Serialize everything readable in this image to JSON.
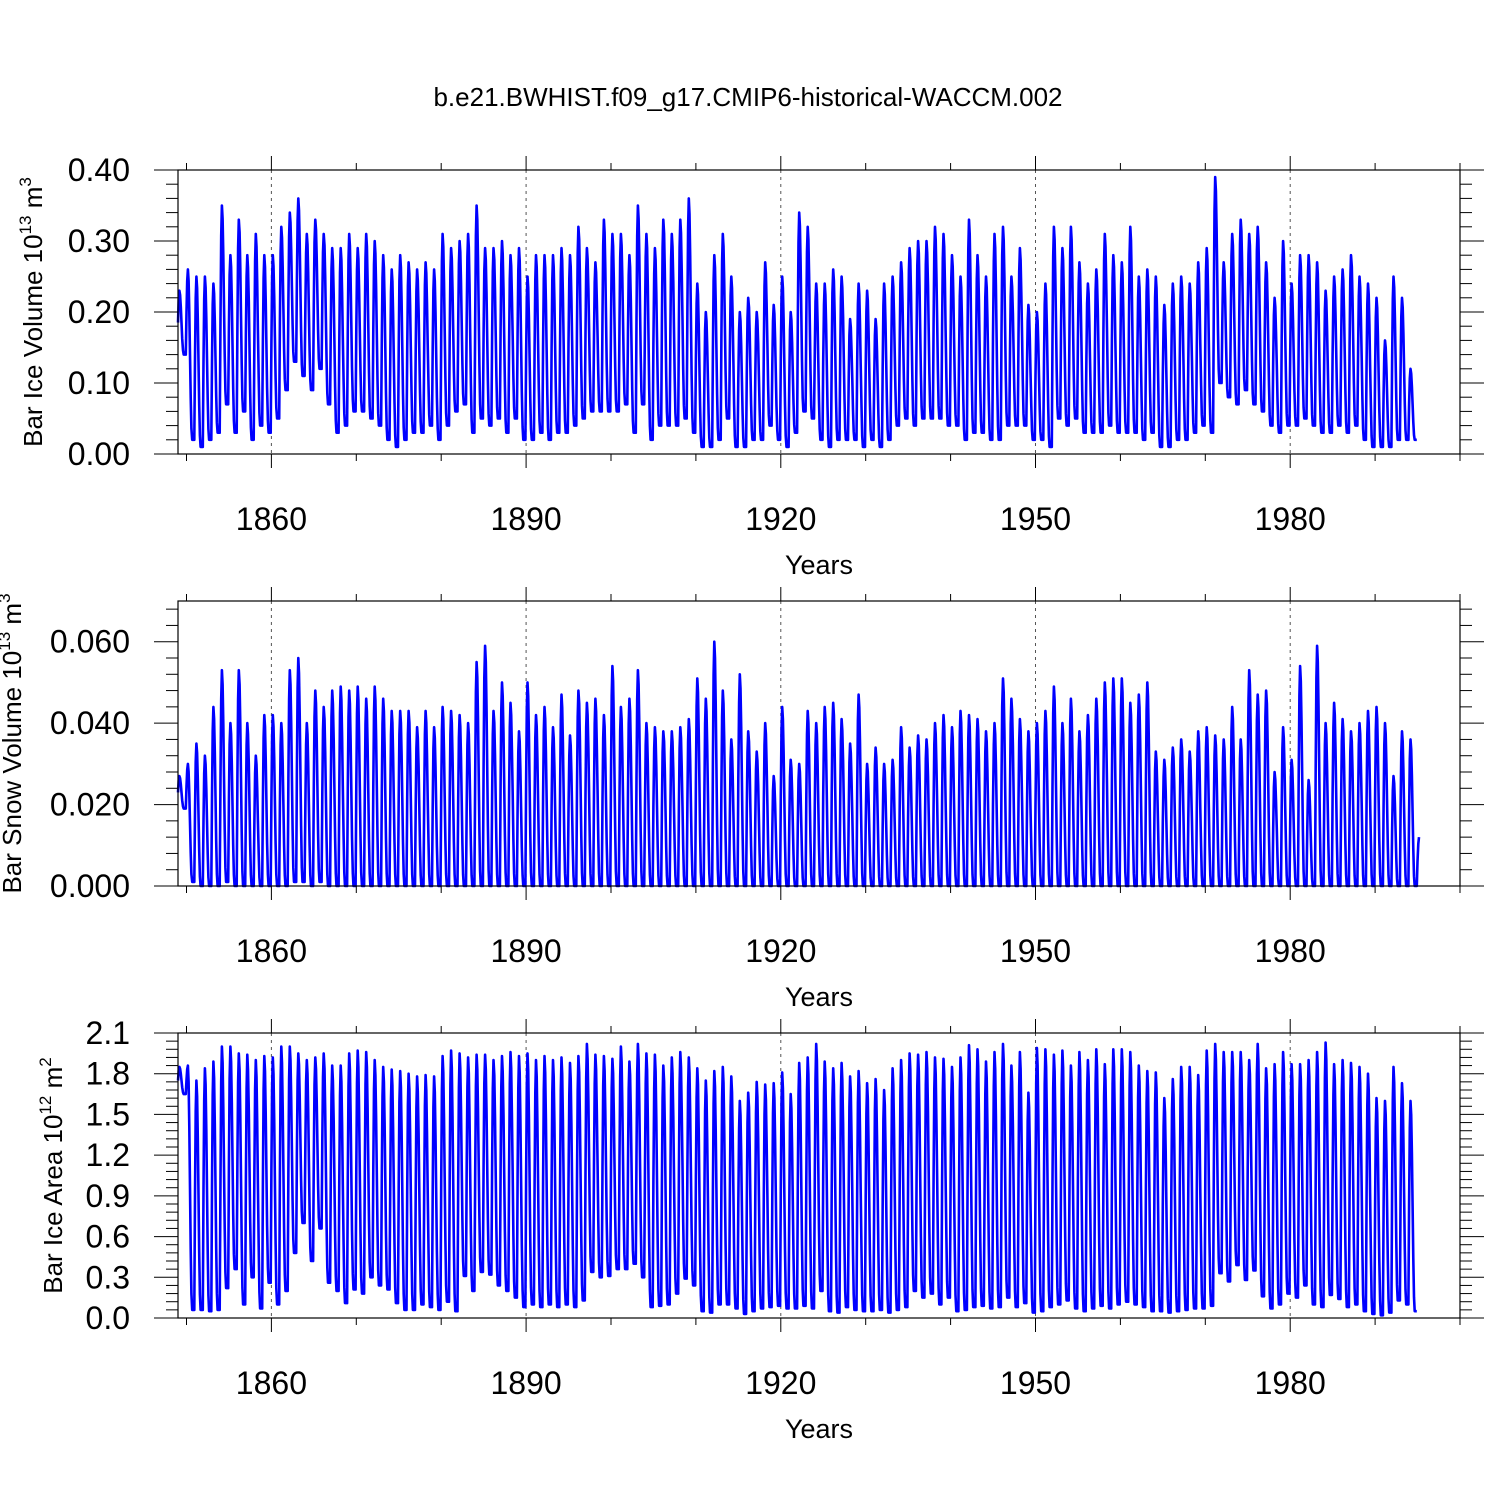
{
  "figure_title": "b.e21.BWHIST.f09_g17.CMIP6-historical-WACCM.002",
  "chart_data": [
    {
      "type": "line",
      "title": "",
      "xlabel": "Years",
      "ylabel": "Bar Ice Volume 10",
      "ylabel_exp": "13",
      "ylabel_unit": " m",
      "ylabel_unit_exp": "3",
      "xlim": [
        1849,
        2000
      ],
      "ylim": [
        0.0,
        0.4
      ],
      "x_ticks": [
        "1860",
        "1890",
        "1920",
        "1950",
        "1980"
      ],
      "y_ticks": [
        "0.00",
        "0.10",
        "0.20",
        "0.30",
        "0.40"
      ],
      "grid": "vertical dashed at major x ticks",
      "line_color": "#0000ff",
      "series": [
        {
          "start_year": 1849,
          "months_per_year": 12,
          "annual_max": [
            0.23,
            0.26,
            0.25,
            0.25,
            0.24,
            0.35,
            0.28,
            0.33,
            0.28,
            0.31,
            0.28,
            0.28,
            0.32,
            0.34,
            0.36,
            0.31,
            0.33,
            0.31,
            0.29,
            0.29,
            0.31,
            0.29,
            0.31,
            0.3,
            0.28,
            0.26,
            0.28,
            0.27,
            0.26,
            0.27,
            0.26,
            0.31,
            0.29,
            0.3,
            0.31,
            0.35,
            0.29,
            0.29,
            0.3,
            0.28,
            0.29,
            0.25,
            0.28,
            0.28,
            0.28,
            0.29,
            0.28,
            0.32,
            0.29,
            0.27,
            0.33,
            0.31,
            0.31,
            0.28,
            0.35,
            0.31,
            0.29,
            0.33,
            0.31,
            0.33,
            0.36,
            0.24,
            0.2,
            0.28,
            0.31,
            0.25,
            0.2,
            0.22,
            0.2,
            0.27,
            0.21,
            0.25,
            0.2,
            0.34,
            0.32,
            0.24,
            0.24,
            0.26,
            0.25,
            0.19,
            0.24,
            0.23,
            0.19,
            0.24,
            0.25,
            0.27,
            0.29,
            0.3,
            0.3,
            0.32,
            0.31,
            0.28,
            0.25,
            0.33,
            0.28,
            0.25,
            0.31,
            0.32,
            0.25,
            0.29,
            0.21,
            0.2,
            0.24,
            0.32,
            0.29,
            0.32,
            0.27,
            0.24,
            0.26,
            0.31,
            0.28,
            0.27,
            0.32,
            0.25,
            0.26,
            0.25,
            0.21,
            0.24,
            0.25,
            0.24,
            0.27,
            0.29,
            0.39,
            0.27,
            0.31,
            0.33,
            0.31,
            0.32,
            0.27,
            0.22,
            0.3,
            0.24,
            0.28,
            0.28,
            0.27,
            0.23,
            0.25,
            0.26,
            0.28,
            0.25,
            0.24,
            0.22,
            0.16,
            0.25,
            0.22,
            0.12
          ],
          "annual_min": [
            0.14,
            0.02,
            0.01,
            0.02,
            0.03,
            0.07,
            0.03,
            0.06,
            0.02,
            0.04,
            0.03,
            0.05,
            0.09,
            0.13,
            0.11,
            0.09,
            0.12,
            0.07,
            0.03,
            0.04,
            0.06,
            0.06,
            0.05,
            0.04,
            0.02,
            0.01,
            0.02,
            0.03,
            0.03,
            0.04,
            0.02,
            0.04,
            0.06,
            0.07,
            0.03,
            0.05,
            0.04,
            0.05,
            0.03,
            0.05,
            0.02,
            0.02,
            0.03,
            0.02,
            0.03,
            0.03,
            0.04,
            0.05,
            0.06,
            0.06,
            0.06,
            0.06,
            0.07,
            0.03,
            0.07,
            0.02,
            0.04,
            0.04,
            0.04,
            0.05,
            0.03,
            0.01,
            0.01,
            0.02,
            0.05,
            0.01,
            0.01,
            0.02,
            0.02,
            0.04,
            0.02,
            0.01,
            0.03,
            0.06,
            0.05,
            0.02,
            0.01,
            0.02,
            0.02,
            0.02,
            0.01,
            0.02,
            0.01,
            0.02,
            0.04,
            0.05,
            0.04,
            0.05,
            0.05,
            0.05,
            0.04,
            0.04,
            0.02,
            0.03,
            0.03,
            0.02,
            0.02,
            0.04,
            0.04,
            0.04,
            0.02,
            0.02,
            0.01,
            0.05,
            0.04,
            0.05,
            0.03,
            0.03,
            0.03,
            0.04,
            0.03,
            0.03,
            0.03,
            0.02,
            0.03,
            0.01,
            0.01,
            0.02,
            0.02,
            0.03,
            0.04,
            0.03,
            0.1,
            0.08,
            0.07,
            0.09,
            0.07,
            0.06,
            0.04,
            0.03,
            0.04,
            0.04,
            0.05,
            0.04,
            0.03,
            0.03,
            0.04,
            0.03,
            0.04,
            0.02,
            0.01,
            0.01,
            0.01,
            0.02,
            0.02,
            0.02
          ]
        }
      ]
    },
    {
      "type": "line",
      "title": "",
      "xlabel": "Years",
      "ylabel": "Bar Snow Volume 10",
      "ylabel_exp": "13",
      "ylabel_unit": " m",
      "ylabel_unit_exp": "3",
      "xlim": [
        1849,
        2000
      ],
      "ylim": [
        0.0,
        0.07
      ],
      "x_ticks": [
        "1860",
        "1890",
        "1920",
        "1950",
        "1980"
      ],
      "y_ticks": [
        "0.000",
        "0.020",
        "0.040",
        "0.060"
      ],
      "grid": "vertical dashed at major x ticks",
      "line_color": "#0000ff",
      "series": [
        {
          "start_year": 1849,
          "months_per_year": 12,
          "annual_max": [
            0.027,
            0.03,
            0.035,
            0.032,
            0.044,
            0.053,
            0.04,
            0.053,
            0.04,
            0.032,
            0.042,
            0.042,
            0.04,
            0.053,
            0.056,
            0.04,
            0.048,
            0.044,
            0.048,
            0.049,
            0.048,
            0.049,
            0.046,
            0.049,
            0.046,
            0.043,
            0.043,
            0.043,
            0.039,
            0.043,
            0.039,
            0.044,
            0.043,
            0.042,
            0.04,
            0.055,
            0.059,
            0.043,
            0.05,
            0.045,
            0.038,
            0.05,
            0.042,
            0.044,
            0.039,
            0.047,
            0.037,
            0.048,
            0.045,
            0.046,
            0.042,
            0.054,
            0.044,
            0.046,
            0.053,
            0.04,
            0.039,
            0.038,
            0.038,
            0.039,
            0.041,
            0.051,
            0.046,
            0.06,
            0.048,
            0.036,
            0.052,
            0.038,
            0.033,
            0.04,
            0.027,
            0.044,
            0.031,
            0.03,
            0.043,
            0.04,
            0.044,
            0.045,
            0.041,
            0.035,
            0.047,
            0.03,
            0.034,
            0.03,
            0.031,
            0.039,
            0.034,
            0.037,
            0.036,
            0.04,
            0.042,
            0.039,
            0.043,
            0.042,
            0.041,
            0.038,
            0.04,
            0.051,
            0.046,
            0.041,
            0.038,
            0.04,
            0.043,
            0.049,
            0.04,
            0.046,
            0.038,
            0.042,
            0.046,
            0.05,
            0.051,
            0.051,
            0.045,
            0.047,
            0.05,
            0.033,
            0.031,
            0.034,
            0.036,
            0.033,
            0.038,
            0.039,
            0.037,
            0.036,
            0.044,
            0.036,
            0.053,
            0.047,
            0.048,
            0.028,
            0.039,
            0.031,
            0.054,
            0.026,
            0.059,
            0.04,
            0.045,
            0.041,
            0.038,
            0.04,
            0.043,
            0.044,
            0.04,
            0.027,
            0.038,
            0.036,
            0.012
          ],
          "annual_min": [
            0.019,
            0.001,
            0.0,
            0.0,
            0.0,
            0.001,
            0.0,
            0.0,
            0.0,
            0.0,
            0.0,
            0.0,
            0.0,
            0.001,
            0.001,
            0.0,
            0.001,
            0.0,
            0.0,
            0.0,
            0.0,
            0.0,
            0.0,
            0.0,
            0.0,
            0.0,
            0.0,
            0.0,
            0.0,
            0.0,
            0.0,
            0.0,
            0.0,
            0.0,
            0.0,
            0.0,
            0.0,
            0.0,
            0.0,
            0.0,
            0.0,
            0.0,
            0.0,
            0.0,
            0.0,
            0.0,
            0.0,
            0.0,
            0.0,
            0.0,
            0.0,
            0.0,
            0.0,
            0.0,
            0.0,
            0.0,
            0.0,
            0.0,
            0.0,
            0.0,
            0.0,
            0.0,
            0.0,
            0.0,
            0.0,
            0.0,
            0.0,
            0.0,
            0.0,
            0.0,
            0.0,
            0.0,
            0.0,
            0.0,
            0.0,
            0.0,
            0.0,
            0.0,
            0.0,
            0.0,
            0.0,
            0.0,
            0.0,
            0.0,
            0.0,
            0.0,
            0.0,
            0.0,
            0.0,
            0.0,
            0.0,
            0.0,
            0.0,
            0.0,
            0.0,
            0.0,
            0.0,
            0.0,
            0.0,
            0.0,
            0.0,
            0.0,
            0.0,
            0.0,
            0.0,
            0.0,
            0.0,
            0.0,
            0.0,
            0.0,
            0.0,
            0.0,
            0.0,
            0.0,
            0.0,
            0.0,
            0.0,
            0.0,
            0.0,
            0.0,
            0.0,
            0.0,
            0.0,
            0.0,
            0.0,
            0.0,
            0.0,
            0.0,
            0.0,
            0.0,
            0.0,
            0.0,
            0.0,
            0.0,
            0.0,
            0.0,
            0.0,
            0.0,
            0.0,
            0.0,
            0.0,
            0.0,
            0.0,
            0.0,
            0.0,
            0.0
          ]
        }
      ]
    },
    {
      "type": "line",
      "title": "",
      "xlabel": "Years",
      "ylabel": "Bar Ice Area 10",
      "ylabel_exp": "12",
      "ylabel_unit": " m",
      "ylabel_unit_exp": "2",
      "xlim": [
        1849,
        2000
      ],
      "ylim": [
        0.0,
        2.1
      ],
      "x_ticks": [
        "1860",
        "1890",
        "1920",
        "1950",
        "1980"
      ],
      "y_ticks": [
        "0.0",
        "0.3",
        "0.6",
        "0.9",
        "1.2",
        "1.5",
        "1.8",
        "2.1"
      ],
      "grid": "vertical dashed at major x ticks",
      "line_color": "#0000ff",
      "series": [
        {
          "start_year": 1849,
          "months_per_year": 12,
          "annual_max": [
            1.85,
            1.86,
            1.75,
            1.84,
            1.89,
            2.0,
            2.0,
            1.95,
            1.94,
            1.9,
            1.93,
            1.92,
            2.0,
            2.0,
            1.95,
            1.9,
            1.92,
            1.95,
            1.86,
            1.86,
            1.95,
            1.97,
            1.96,
            1.9,
            1.85,
            1.83,
            1.82,
            1.8,
            1.78,
            1.79,
            1.78,
            1.93,
            1.97,
            1.95,
            1.92,
            1.94,
            1.94,
            1.9,
            1.93,
            1.96,
            1.93,
            1.95,
            1.9,
            1.93,
            1.9,
            1.92,
            1.88,
            1.93,
            2.02,
            1.94,
            1.93,
            1.91,
            2.0,
            1.89,
            2.02,
            1.95,
            1.94,
            1.86,
            1.92,
            1.96,
            1.92,
            1.84,
            1.75,
            1.82,
            1.85,
            1.78,
            1.6,
            1.66,
            1.74,
            1.72,
            1.73,
            1.81,
            1.65,
            1.88,
            1.92,
            2.02,
            1.89,
            1.84,
            1.88,
            1.78,
            1.82,
            1.73,
            1.76,
            1.68,
            1.84,
            1.9,
            1.95,
            1.94,
            1.96,
            1.92,
            1.91,
            1.85,
            1.92,
            2.01,
            1.98,
            1.89,
            1.96,
            2.02,
            1.86,
            1.96,
            1.66,
            1.99,
            1.98,
            1.94,
            1.97,
            1.86,
            1.96,
            1.9,
            1.98,
            1.87,
            1.98,
            1.98,
            1.96,
            1.86,
            1.82,
            1.81,
            1.62,
            1.76,
            1.85,
            1.85,
            1.79,
            1.97,
            2.02,
            1.96,
            1.96,
            1.96,
            1.9,
            2.02,
            1.84,
            1.87,
            1.96,
            1.87,
            1.87,
            1.9,
            1.96,
            2.03,
            1.87,
            1.9,
            1.88,
            1.85,
            1.8,
            1.62,
            1.6,
            1.85,
            1.73,
            1.6
          ],
          "annual_min": [
            1.65,
            0.06,
            0.06,
            0.05,
            0.06,
            0.22,
            0.36,
            0.1,
            0.3,
            0.07,
            0.26,
            0.1,
            0.2,
            0.48,
            0.7,
            0.42,
            0.66,
            0.26,
            0.2,
            0.11,
            0.21,
            0.18,
            0.3,
            0.24,
            0.21,
            0.11,
            0.06,
            0.06,
            0.1,
            0.08,
            0.06,
            0.12,
            0.05,
            0.31,
            0.2,
            0.34,
            0.32,
            0.24,
            0.2,
            0.15,
            0.08,
            0.1,
            0.08,
            0.1,
            0.08,
            0.1,
            0.08,
            0.13,
            0.34,
            0.3,
            0.31,
            0.36,
            0.36,
            0.4,
            0.3,
            0.08,
            0.09,
            0.1,
            0.18,
            0.29,
            0.24,
            0.05,
            0.04,
            0.1,
            0.1,
            0.07,
            0.03,
            0.05,
            0.07,
            0.08,
            0.09,
            0.07,
            0.07,
            0.09,
            0.07,
            0.2,
            0.05,
            0.04,
            0.08,
            0.06,
            0.05,
            0.05,
            0.06,
            0.04,
            0.06,
            0.08,
            0.2,
            0.15,
            0.18,
            0.1,
            0.15,
            0.05,
            0.06,
            0.08,
            0.09,
            0.07,
            0.08,
            0.15,
            0.08,
            0.11,
            0.04,
            0.05,
            0.08,
            0.1,
            0.13,
            0.07,
            0.05,
            0.07,
            0.09,
            0.07,
            0.1,
            0.12,
            0.1,
            0.08,
            0.05,
            0.05,
            0.04,
            0.05,
            0.06,
            0.07,
            0.07,
            0.09,
            0.33,
            0.27,
            0.39,
            0.28,
            0.35,
            0.16,
            0.07,
            0.1,
            0.18,
            0.15,
            0.24,
            0.1,
            0.08,
            0.17,
            0.14,
            0.08,
            0.1,
            0.05,
            0.03,
            0.02,
            0.04,
            0.13,
            0.1,
            0.05
          ]
        }
      ]
    }
  ]
}
